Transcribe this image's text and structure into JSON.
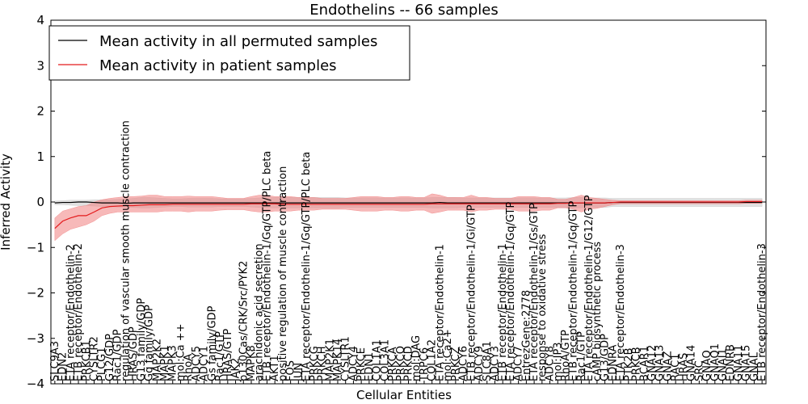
{
  "chart_data": {
    "type": "line",
    "title": "Endothelins -- 66 samples",
    "xlabel": "Cellular Entities",
    "ylabel": "Inferred Activity",
    "ylim": [
      -4,
      4
    ],
    "yticks": [
      -4,
      -3,
      -2,
      -1,
      0,
      1,
      2,
      3,
      4
    ],
    "legend_position": "top-left",
    "colors": {
      "permuted": "#000000",
      "patient": "#e41a1c",
      "patient_band": "#f08080",
      "permuted_band": "#c8c8c8"
    },
    "categories": [
      "SLC9A3",
      "EDN2",
      "ETA receptor/Endothelin-2",
      "ETB receptor/Endothelin-2",
      "PRKCB1",
      "CYSLTR2",
      "PLCG1",
      "G12/GDP",
      "Rac1/GDP",
      "regulation of vascular smooth muscle contraction",
      "HRAS/GDP",
      "G13 family/GDP",
      "Gq family/GDP",
      "MAP2K2",
      "MAPK1",
      "MAPK3",
      "mol:Ca ++",
      "RhoA",
      "ADCY5",
      "ADCY1",
      "Gs family/GDP",
      "Rac1/GTP",
      "HRAS/GTP",
      "JAK2",
      "p130Cas/CRK/Src/PYK2",
      "MAPK8",
      "arachidonic acid secretion",
      "ETB receptor/Endothelin-1/Gq/GTP/PLC beta",
      "AKT1",
      "positive regulation of muscle contraction",
      "FOS",
      "JUN",
      "ETA receptor/Endothelin-1/Gq/GTP/PLC beta",
      "PRKCG",
      "PRKCH",
      "MAP2K1",
      "MAPK14",
      "CYSLTR1",
      "ADCY4",
      "PRKCE",
      "EDN1",
      "COL1A1",
      "COL3A1",
      "PRKCA",
      "PRKCQ",
      "PRKCD",
      "mol:DAG",
      "TRPC6",
      "COL1A2",
      "ETA receptor/Endothelin-1",
      "mol:Ca2+",
      "PRKCZ",
      "ADCY6",
      "ETB receptor/Endothelin-1/Gi/GTP",
      "ADCY9",
      "SLC8A1",
      "ADCY3",
      "ETB receptor/Endothelin-1",
      "ETA receptor/Endothelin-1/Gq/GTP",
      "ADCY7",
      "EntrezGene:2778",
      "ETA receptor/Endothelin-1/Gs/GTP",
      "response to oxidative stress",
      "ADCY8",
      "mol:IP3",
      "RhoA/GTP",
      "ETB receptor/Endothelin-1/Gq/GTP",
      "Rac1/GTP",
      "ETA receptor/Endothelin-1/G12/GTP",
      "cAMP biosynthetic process",
      "G13/GDP",
      "EDNRA",
      "ETA receptor/Endothelin-3",
      "PTK2B",
      "PRKCB",
      "BCAR1",
      "GNA12",
      "GNA13",
      "GNAZ",
      "RAC1",
      "HRAS",
      "GNA14",
      "SRC",
      "GNAQ",
      "GNAO1",
      "GNAI1",
      "EDNRB",
      "GNA11",
      "GNA15",
      "GNAL",
      "ETB receptor/Endothelin-3"
    ],
    "series": [
      {
        "name": "Mean activity in all permuted samples",
        "values": [
          -0.02,
          -0.01,
          -0.01,
          0,
          0,
          -0.01,
          -0.02,
          -0.02,
          -0.02,
          -0.03,
          -0.02,
          -0.02,
          -0.02,
          -0.02,
          -0.02,
          -0.02,
          -0.02,
          -0.02,
          -0.02,
          -0.02,
          -0.02,
          -0.02,
          -0.02,
          -0.02,
          -0.02,
          -0.02,
          -0.02,
          -0.02,
          -0.02,
          -0.02,
          -0.02,
          -0.02,
          -0.02,
          -0.02,
          -0.02,
          -0.02,
          -0.02,
          -0.02,
          -0.02,
          -0.02,
          -0.02,
          -0.02,
          -0.02,
          -0.02,
          -0.02,
          -0.02,
          -0.02,
          -0.02,
          -0.02,
          -0.01,
          -0.02,
          -0.02,
          -0.02,
          -0.02,
          -0.02,
          -0.02,
          -0.02,
          -0.02,
          -0.02,
          -0.02,
          -0.02,
          -0.02,
          -0.02,
          -0.02,
          -0.02,
          -0.02,
          -0.02,
          -0.02,
          -0.02,
          -0.02,
          -0.02,
          -0.01,
          -0.01,
          -0.01,
          -0.01,
          -0.01,
          -0.01,
          -0.01,
          -0.01,
          -0.01,
          -0.01,
          -0.01,
          -0.01,
          -0.01,
          -0.01,
          -0.01,
          -0.01,
          -0.01,
          -0.01,
          -0.01,
          -0.01
        ]
      },
      {
        "name": "Mean activity in patient samples",
        "values": [
          -0.58,
          -0.42,
          -0.35,
          -0.3,
          -0.3,
          -0.22,
          -0.13,
          -0.1,
          -0.09,
          -0.08,
          -0.08,
          -0.07,
          -0.06,
          -0.06,
          -0.06,
          -0.05,
          -0.05,
          -0.05,
          -0.05,
          -0.05,
          -0.05,
          -0.05,
          -0.05,
          -0.05,
          -0.05,
          -0.04,
          -0.04,
          -0.04,
          -0.04,
          -0.05,
          -0.05,
          -0.05,
          -0.05,
          -0.05,
          -0.05,
          -0.05,
          -0.05,
          -0.05,
          -0.05,
          -0.05,
          -0.05,
          -0.05,
          -0.05,
          -0.05,
          -0.05,
          -0.05,
          -0.05,
          -0.05,
          -0.04,
          -0.04,
          -0.04,
          -0.04,
          -0.04,
          -0.04,
          -0.04,
          -0.04,
          -0.04,
          -0.04,
          -0.04,
          -0.04,
          -0.04,
          -0.04,
          -0.04,
          -0.04,
          -0.03,
          -0.03,
          -0.02,
          -0.02,
          -0.02,
          -0.02,
          -0.02,
          -0.01,
          0,
          0,
          0,
          0,
          0,
          0,
          0,
          0,
          0,
          0,
          0,
          0,
          0,
          0,
          0,
          0,
          0.01,
          0.01,
          0.01
        ]
      }
    ],
    "bands": [
      {
        "name": "permuted spread",
        "upper": [
          0.02,
          0.03,
          0.04,
          0.04,
          0.04,
          0.05,
          0.05,
          0.05,
          0.06,
          0.07,
          0.08,
          0.1,
          0.1,
          0.09,
          0.08,
          0.07,
          0.07,
          0.08,
          0.08,
          0.08,
          0.08,
          0.07,
          0.07,
          0.07,
          0.07,
          0.08,
          0.09,
          0.1,
          0.1,
          0.1,
          0.1,
          0.1,
          0.1,
          0.1,
          0.1,
          0.1,
          0.1,
          0.09,
          0.09,
          0.09,
          0.09,
          0.09,
          0.09,
          0.09,
          0.09,
          0.09,
          0.09,
          0.09,
          0.1,
          0.1,
          0.1,
          0.1,
          0.09,
          0.09,
          0.09,
          0.09,
          0.09,
          0.09,
          0.09,
          0.09,
          0.09,
          0.09,
          0.09,
          0.09,
          0.09,
          0.09,
          0.1,
          0.1,
          0.09,
          0.09,
          0.09,
          0.08,
          0.08,
          0.08,
          0.08,
          0.08,
          0.08,
          0.08,
          0.08,
          0.08,
          0.08,
          0.08,
          0.08,
          0.08,
          0.08,
          0.08,
          0.08,
          0.08,
          0.08,
          0.08,
          0.08
        ],
        "lower": [
          -0.06,
          -0.06,
          -0.07,
          -0.08,
          -0.08,
          -0.09,
          -0.1,
          -0.1,
          -0.11,
          -0.12,
          -0.12,
          -0.13,
          -0.13,
          -0.12,
          -0.11,
          -0.1,
          -0.1,
          -0.11,
          -0.11,
          -0.11,
          -0.11,
          -0.1,
          -0.1,
          -0.1,
          -0.1,
          -0.11,
          -0.12,
          -0.13,
          -0.13,
          -0.13,
          -0.13,
          -0.13,
          -0.13,
          -0.13,
          -0.13,
          -0.13,
          -0.13,
          -0.12,
          -0.12,
          -0.12,
          -0.12,
          -0.12,
          -0.12,
          -0.12,
          -0.12,
          -0.12,
          -0.12,
          -0.12,
          -0.13,
          -0.13,
          -0.13,
          -0.13,
          -0.12,
          -0.12,
          -0.12,
          -0.12,
          -0.12,
          -0.12,
          -0.12,
          -0.12,
          -0.12,
          -0.12,
          -0.12,
          -0.12,
          -0.12,
          -0.12,
          -0.13,
          -0.13,
          -0.12,
          -0.12,
          -0.12,
          -0.1,
          -0.1,
          -0.1,
          -0.1,
          -0.1,
          -0.1,
          -0.1,
          -0.1,
          -0.1,
          -0.1,
          -0.1,
          -0.1,
          -0.1,
          -0.1,
          -0.1,
          -0.1,
          -0.1,
          -0.1,
          -0.1,
          -0.1
        ]
      },
      {
        "name": "patient spread",
        "upper": [
          -0.35,
          -0.2,
          -0.15,
          -0.1,
          -0.08,
          0,
          0.05,
          0.08,
          0.1,
          0.12,
          0.12,
          0.13,
          0.15,
          0.15,
          0.12,
          0.12,
          0.12,
          0.13,
          0.12,
          0.12,
          0.12,
          0.1,
          0.08,
          0.08,
          0.08,
          0.12,
          0.15,
          0.15,
          0.12,
          0.12,
          0.12,
          0.1,
          0.1,
          0.1,
          0.08,
          0.08,
          0.08,
          0.08,
          0.1,
          0.12,
          0.12,
          0.12,
          0.1,
          0.1,
          0.12,
          0.12,
          0.1,
          0.1,
          0.18,
          0.15,
          0.1,
          0.1,
          0.1,
          0.15,
          0.1,
          0.1,
          0.08,
          0.08,
          0.08,
          0.12,
          0.12,
          0.12,
          0.1,
          0.1,
          0.06,
          0.06,
          0.1,
          0.15,
          0.1,
          0.08,
          0.06,
          0.04,
          0.03,
          0.03,
          0.03,
          0.03,
          0.03,
          0.03,
          0.03,
          0.03,
          0.03,
          0.03,
          0.03,
          0.03,
          0.03,
          0.03,
          0.03,
          0.03,
          0.04,
          0.04,
          0.04
        ],
        "lower": [
          -0.85,
          -0.7,
          -0.6,
          -0.55,
          -0.5,
          -0.42,
          -0.3,
          -0.25,
          -0.22,
          -0.22,
          -0.22,
          -0.22,
          -0.22,
          -0.22,
          -0.2,
          -0.2,
          -0.2,
          -0.22,
          -0.2,
          -0.2,
          -0.2,
          -0.18,
          -0.17,
          -0.17,
          -0.17,
          -0.2,
          -0.22,
          -0.22,
          -0.2,
          -0.2,
          -0.2,
          -0.18,
          -0.18,
          -0.18,
          -0.16,
          -0.16,
          -0.16,
          -0.16,
          -0.18,
          -0.2,
          -0.2,
          -0.2,
          -0.18,
          -0.18,
          -0.2,
          -0.2,
          -0.18,
          -0.18,
          -0.25,
          -0.22,
          -0.18,
          -0.18,
          -0.18,
          -0.22,
          -0.18,
          -0.18,
          -0.16,
          -0.16,
          -0.16,
          -0.2,
          -0.2,
          -0.2,
          -0.18,
          -0.18,
          -0.13,
          -0.13,
          -0.16,
          -0.22,
          -0.16,
          -0.14,
          -0.1,
          -0.06,
          -0.04,
          -0.04,
          -0.04,
          -0.04,
          -0.04,
          -0.04,
          -0.04,
          -0.04,
          -0.04,
          -0.04,
          -0.04,
          -0.04,
          -0.04,
          -0.04,
          -0.04,
          -0.04,
          -0.03,
          -0.03,
          -0.03
        ]
      }
    ]
  }
}
